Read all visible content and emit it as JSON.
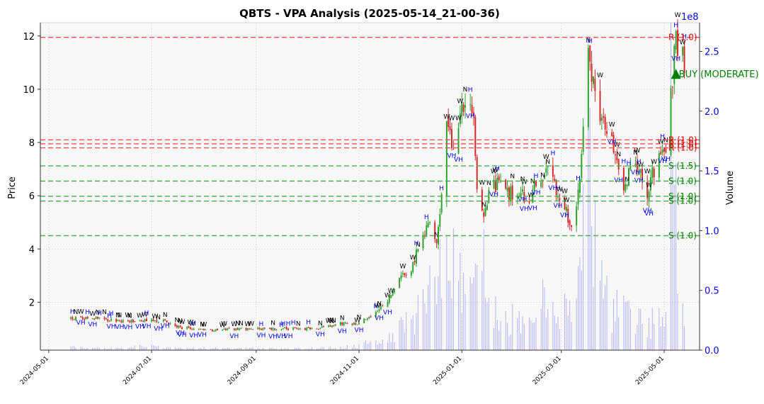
{
  "chart_data": {
    "type": "candlestick",
    "title": "QBTS - VPA Analysis (2025-05-14_21-00-36)",
    "ylabel": "Price",
    "ylabel_right": "Volume",
    "volume_scale_label": "1e8",
    "ylim": [
      0.2,
      12.5
    ],
    "volume_lim": [
      0,
      274000000
    ],
    "price_ticks": [
      2,
      4,
      6,
      8,
      10,
      12
    ],
    "volume_ticks": [
      "0.0",
      "0.5",
      "1.0",
      "1.5",
      "2.0",
      "2.5"
    ],
    "volume_tick_values": [
      0,
      50000000,
      100000000,
      150000000,
      200000000,
      250000000
    ],
    "x_range": [
      "2024-04-26",
      "2025-05-22"
    ],
    "x_ticks": [
      "2024-05-01",
      "2024-07-01",
      "2024-09-01",
      "2024-11-01",
      "2025-01-01",
      "2025-03-01",
      "2025-05-01"
    ],
    "grid": true,
    "colors": {
      "up": "#2ca02c",
      "down": "#d62728",
      "volume": "#7b7bff",
      "resistance": "#f05050",
      "support": "#4caf50",
      "signal": "#008000",
      "label_h": "#0000ff",
      "label_w": "#000000"
    },
    "resistance_levels": [
      {
        "price": 11.95,
        "label": "R (1.0)"
      },
      {
        "price": 8.1,
        "label": "R (1.0)"
      },
      {
        "price": 7.95,
        "label": "R (1.0)"
      },
      {
        "price": 7.8,
        "label": "R (1.0)"
      }
    ],
    "support_levels": [
      {
        "price": 7.12,
        "label": "S (1.5)"
      },
      {
        "price": 6.55,
        "label": "S (1.0)"
      },
      {
        "price": 5.98,
        "label": "S (1.0)"
      },
      {
        "price": 5.8,
        "label": "S (1.0)"
      },
      {
        "price": 4.5,
        "label": "S (1.0)"
      }
    ],
    "signal": {
      "date": "2025-05-08",
      "price": 10.55,
      "label": "BUY (MODERATE)"
    },
    "anchors": [
      [
        "2024-05-14",
        1.4,
        3
      ],
      [
        "2024-05-28",
        1.4,
        2
      ],
      [
        "2024-06-10",
        1.3,
        2
      ],
      [
        "2024-06-24",
        1.3,
        4
      ],
      [
        "2024-07-08",
        1.3,
        3
      ],
      [
        "2024-07-18",
        1.05,
        2
      ],
      [
        "2024-08-05",
        0.95,
        2
      ],
      [
        "2024-08-26",
        1.0,
        2
      ],
      [
        "2024-09-16",
        1.0,
        1.5
      ],
      [
        "2024-10-07",
        1.0,
        2
      ],
      [
        "2024-10-21",
        1.2,
        3
      ],
      [
        "2024-10-31",
        1.2,
        4
      ],
      [
        "2024-11-08",
        1.5,
        8
      ],
      [
        "2024-11-18",
        2.0,
        10
      ],
      [
        "2024-11-25",
        3.0,
        20
      ],
      [
        "2024-12-02",
        3.2,
        28
      ],
      [
        "2024-12-06",
        4.0,
        35
      ],
      [
        "2024-12-12",
        5.0,
        60
      ],
      [
        "2024-12-17",
        4.2,
        55
      ],
      [
        "2024-12-20",
        6.0,
        95
      ],
      [
        "2024-12-23",
        8.8,
        140
      ],
      [
        "2024-12-27",
        7.5,
        80
      ],
      [
        "2024-12-31",
        9.0,
        80
      ],
      [
        "2025-01-03",
        9.6,
        60
      ],
      [
        "2025-01-08",
        9.4,
        50
      ],
      [
        "2025-01-10",
        6.2,
        95
      ],
      [
        "2025-01-14",
        5.0,
        80
      ],
      [
        "2025-01-17",
        6.2,
        50
      ],
      [
        "2025-01-24",
        6.5,
        40
      ],
      [
        "2025-01-31",
        6.0,
        30
      ],
      [
        "2025-02-10",
        6.0,
        22
      ],
      [
        "2025-02-20",
        7.0,
        50
      ],
      [
        "2025-02-27",
        6.0,
        30
      ],
      [
        "2025-03-03",
        5.5,
        40
      ],
      [
        "2025-03-07",
        4.9,
        40
      ],
      [
        "2025-03-12",
        6.5,
        70
      ],
      [
        "2025-03-17",
        11.2,
        200
      ],
      [
        "2025-03-20",
        10.5,
        120
      ],
      [
        "2025-03-25",
        8.8,
        60
      ],
      [
        "2025-03-31",
        8.0,
        40
      ],
      [
        "2025-04-07",
        6.4,
        35
      ],
      [
        "2025-04-14",
        7.3,
        30
      ],
      [
        "2025-04-21",
        6.2,
        25
      ],
      [
        "2025-04-28",
        7.5,
        30
      ],
      [
        "2025-05-02",
        7.3,
        40
      ],
      [
        "2025-05-05",
        9.8,
        270
      ],
      [
        "2025-05-08",
        11.8,
        120
      ],
      [
        "2025-05-13",
        11.1,
        40
      ]
    ]
  }
}
